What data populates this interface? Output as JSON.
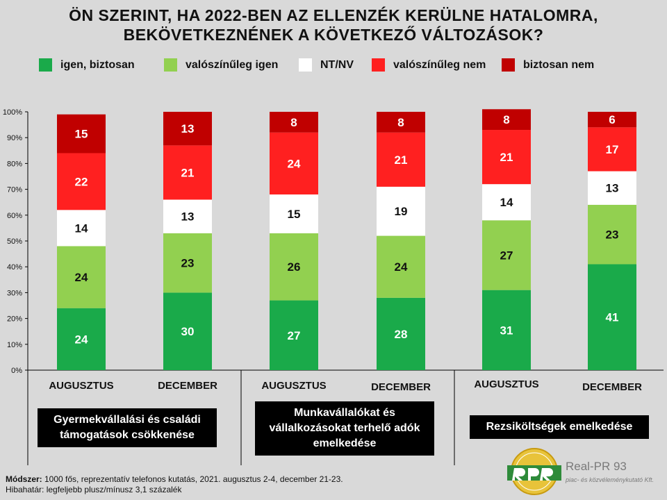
{
  "title": {
    "line1": "ÖN SZERINT, HA 2022-BEN AZ ELLENZÉK KERÜLNE HATALOMRA,",
    "line2": "BEKÖVETKEZNÉNEK A KÖVETKEZŐ VÁLTOZÁSOK?"
  },
  "colors": {
    "igen_biztosan": "#1aaa4a",
    "valoszinuleg_igen": "#92d050",
    "nt_nv": "#ffffff",
    "valoszinuleg_nem": "#ff2020",
    "biztosan_nem": "#c00000"
  },
  "legend": [
    {
      "label": "igen, biztosan",
      "color": "#1aaa4a"
    },
    {
      "label": "valószínűleg igen",
      "color": "#92d050"
    },
    {
      "label": "NT/NV",
      "color": "#ffffff"
    },
    {
      "label": "valószínűleg nem",
      "color": "#ff2020"
    },
    {
      "label": "biztosan nem",
      "color": "#c00000"
    }
  ],
  "chart_data": {
    "type": "bar",
    "stacked": true,
    "percent_stacked": true,
    "ylim": [
      0,
      100
    ],
    "yticks": [
      "0%",
      "10%",
      "20%",
      "30%",
      "40%",
      "50%",
      "60%",
      "70%",
      "80%",
      "90%",
      "100%"
    ],
    "categories": [
      "AUGUSZTUS",
      "DECEMBER",
      "AUGUSZTUS",
      "DECEMBER",
      "AUGUSZTUS",
      "DECEMBER"
    ],
    "groups": [
      "Gyermekvállalási és családi támogatások csökkenése",
      "Munkavállalókat és vállalkozásokat terhelő adók emelkedése",
      "Rezsiköltségek emelkedése"
    ],
    "series": [
      {
        "name": "igen, biztosan",
        "color": "#1aaa4a",
        "values": [
          24,
          30,
          27,
          28,
          31,
          41
        ]
      },
      {
        "name": "valószínűleg igen",
        "color": "#92d050",
        "values": [
          24,
          23,
          26,
          24,
          27,
          23
        ]
      },
      {
        "name": "NT/NV",
        "color": "#ffffff",
        "values": [
          14,
          13,
          15,
          19,
          14,
          13
        ]
      },
      {
        "name": "valószínűleg nem",
        "color": "#ff2020",
        "values": [
          22,
          21,
          24,
          21,
          21,
          17
        ]
      },
      {
        "name": "biztosan nem",
        "color": "#c00000",
        "values": [
          15,
          13,
          8,
          8,
          8,
          6
        ]
      }
    ],
    "legend_position": "top",
    "grid": false
  },
  "group_labels": [
    [
      "Gyermekvállalási és családi",
      "támogatások csökkenése"
    ],
    [
      "Munkavállalókat és",
      "vállalkozásokat terhelő adók",
      "emelkedése"
    ],
    [
      "Rezsiköltségek emelkedése"
    ]
  ],
  "footer": {
    "method_label": "Módszer:",
    "method_text": " 1000 fős, reprezentatív telefonos kutatás, 2021. augusztus 2-4, december 21-23.",
    "error_text": "Hibahatár: legfeljebb plusz/mínusz 3,1 százalék"
  },
  "logo": {
    "name": "Real-PR 93",
    "subtitle": "piac- és közvéleménykutató Kft."
  }
}
